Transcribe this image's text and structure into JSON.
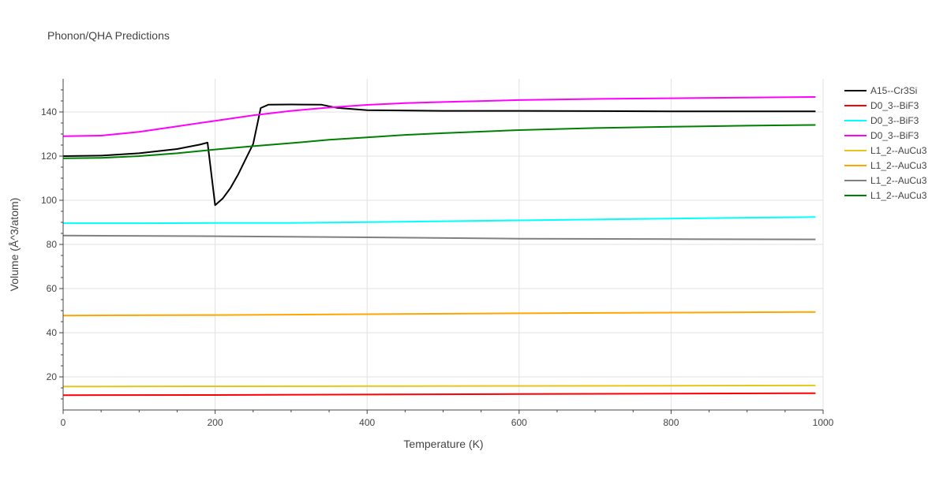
{
  "chart_data": {
    "type": "line",
    "title": "Phonon/QHA Predictions",
    "xlabel": "Temperature (K)",
    "ylabel": "Volume (Å^3/atom)",
    "xlim": [
      0,
      1000
    ],
    "ylim": [
      5,
      155
    ],
    "xticks": [
      0,
      200,
      400,
      600,
      800,
      1000
    ],
    "yticks": [
      20,
      40,
      60,
      80,
      100,
      120,
      140
    ],
    "grid": true,
    "legend_position": "top-right",
    "series": [
      {
        "name": "A15--Cr3Si",
        "color": "#000000",
        "x": [
          0,
          50,
          100,
          150,
          180,
          190,
          200,
          210,
          220,
          230,
          240,
          250,
          260,
          270,
          300,
          340,
          360,
          400,
          500,
          600,
          700,
          800,
          900,
          990
        ],
        "y": [
          120,
          120.2,
          121.3,
          123.2,
          125.2,
          126.1,
          97.8,
          100.8,
          105.5,
          111.5,
          118.5,
          125.5,
          141.8,
          143.3,
          143.4,
          143.3,
          141.9,
          140.8,
          140.5,
          140.5,
          140.4,
          140.3,
          140.3,
          140.3
        ]
      },
      {
        "name": "D0_3--BiF3",
        "color": "#ff0000",
        "x": [
          0,
          200,
          400,
          600,
          800,
          990
        ],
        "y": [
          11.7,
          11.8,
          12,
          12.2,
          12.4,
          12.6
        ]
      },
      {
        "name": "D0_3--BiF3",
        "color": "#00ffff",
        "x": [
          0,
          100,
          200,
          300,
          400,
          500,
          600,
          700,
          800,
          900,
          990
        ],
        "y": [
          89.6,
          89.6,
          89.7,
          89.7,
          90.1,
          90.5,
          90.9,
          91.3,
          91.7,
          92.1,
          92.4
        ]
      },
      {
        "name": "D0_3--BiF3",
        "color": "#ff00ff",
        "x": [
          0,
          50,
          100,
          150,
          200,
          250,
          300,
          350,
          400,
          450,
          500,
          600,
          700,
          800,
          900,
          990
        ],
        "y": [
          129,
          129.3,
          131,
          133.5,
          136,
          138.5,
          140.5,
          142,
          143.2,
          144,
          144.5,
          145.4,
          145.9,
          146.2,
          146.5,
          146.8
        ]
      },
      {
        "name": "L1_2--AuCu3",
        "color": "#e6c619",
        "x": [
          0,
          200,
          400,
          600,
          800,
          990
        ],
        "y": [
          15.6,
          15.7,
          15.8,
          15.9,
          16,
          16.1
        ]
      },
      {
        "name": "L1_2--AuCu3",
        "color": "#ffa500",
        "x": [
          0,
          200,
          400,
          600,
          800,
          990
        ],
        "y": [
          47.8,
          48,
          48.4,
          48.8,
          49.1,
          49.4
        ]
      },
      {
        "name": "L1_2--AuCu3",
        "color": "#808080",
        "x": [
          0,
          200,
          400,
          600,
          800,
          990
        ],
        "y": [
          84,
          83.7,
          83.2,
          82.6,
          82.4,
          82.3
        ]
      },
      {
        "name": "L1_2--AuCu3",
        "color": "#008000",
        "x": [
          0,
          50,
          100,
          150,
          200,
          250,
          300,
          350,
          400,
          450,
          500,
          600,
          700,
          800,
          900,
          990
        ],
        "y": [
          119,
          119.2,
          120,
          121.3,
          123,
          124.5,
          125.9,
          127.4,
          128.5,
          129.6,
          130.4,
          131.8,
          132.7,
          133.3,
          133.8,
          134.1
        ]
      }
    ]
  }
}
